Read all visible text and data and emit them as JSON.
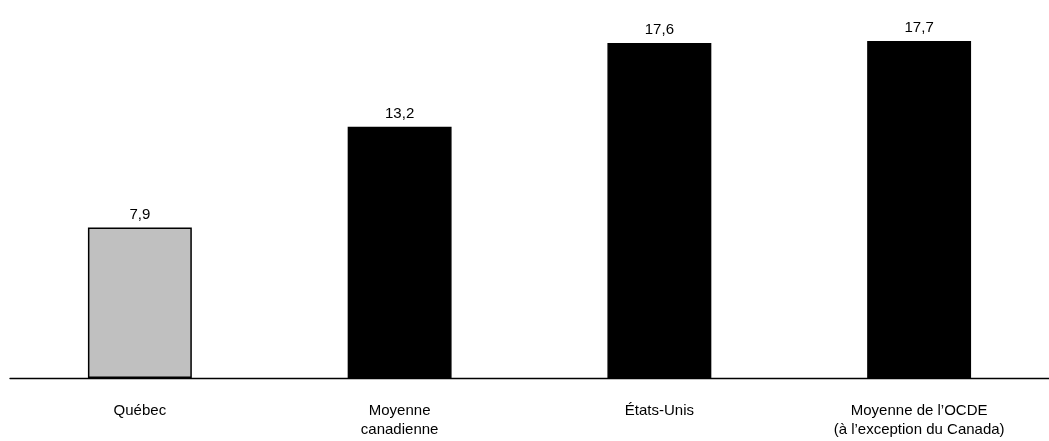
{
  "chart_data": {
    "type": "bar",
    "categories": [
      "Québec",
      "Moyenne\ncanadienne",
      "États-Unis",
      "Moyenne de l’OCDE\n(à l’exception du Canada)"
    ],
    "values": [
      7.9,
      13.2,
      17.6,
      17.7
    ],
    "colors": [
      "#c0c0c0",
      "#000000",
      "#000000",
      "#000000"
    ],
    "value_labels": [
      "7,9",
      "13,2",
      "17,6",
      "17,7"
    ]
  }
}
